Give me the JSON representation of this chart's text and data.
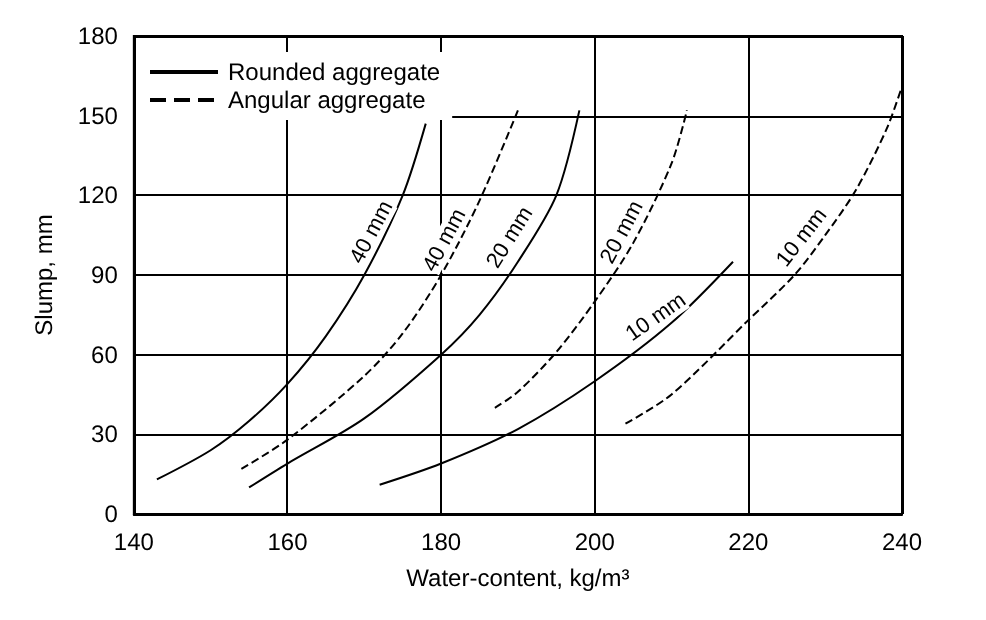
{
  "chart_data": {
    "type": "line",
    "xlabel": "Water-content, kg/m³",
    "ylabel": "Slump, mm",
    "xlim": [
      140,
      240
    ],
    "xticks": [
      140,
      160,
      180,
      200,
      220,
      240
    ],
    "ylim": [
      0,
      180
    ],
    "yticks": [
      0,
      30,
      60,
      90,
      120,
      150,
      180
    ],
    "grid": true,
    "legend": "top left",
    "marker": "none",
    "series": [
      {
        "name": "Rounded aggregate",
        "color": "#000000",
        "line_style": "solid",
        "x": [
          143,
          150,
          155,
          160,
          165,
          170,
          175,
          178
        ],
        "values": [
          13,
          24,
          35,
          49,
          67,
          90,
          120,
          147
        ]
      },
      {
        "name": "Angular aggregate",
        "color": "#000000",
        "line_style": "dashed",
        "x": [
          154,
          160,
          170,
          175,
          180,
          185,
          190
        ],
        "values": [
          17,
          28,
          52,
          68,
          90,
          118,
          152
        ]
      },
      {
        "color": "#000000",
        "line_style": "solid",
        "x": [
          155,
          160,
          170,
          180,
          185,
          190,
          195,
          198
        ],
        "values": [
          10,
          19,
          36,
          60,
          75,
          95,
          120,
          152
        ]
      },
      {
        "color": "#000000",
        "line_style": "dashed",
        "x": [
          187,
          190,
          195,
          200,
          205,
          210,
          212
        ],
        "values": [
          40,
          46,
          61,
          80,
          102,
          132,
          152
        ]
      },
      {
        "color": "#000000",
        "line_style": "solid",
        "x": [
          172,
          180,
          190,
          200,
          210,
          218
        ],
        "values": [
          11,
          19,
          32,
          50,
          72,
          95
        ]
      },
      {
        "color": "#000000",
        "line_style": "dashed",
        "x": [
          204,
          210,
          220,
          226,
          230,
          234,
          238,
          240
        ],
        "values": [
          34,
          45,
          73,
          90,
          105,
          122,
          145,
          161
        ]
      }
    ],
    "annotations": [
      {
        "text": "40 mm",
        "x": 171,
        "y": 106
      },
      {
        "text": "40 mm",
        "x": 180.5,
        "y": 103
      },
      {
        "text": "20 mm",
        "x": 189,
        "y": 104
      },
      {
        "text": "20 mm",
        "x": 203.6,
        "y": 106
      },
      {
        "text": "10 mm",
        "x": 208,
        "y": 74
      },
      {
        "text": "10 mm",
        "x": 227,
        "y": 104
      }
    ]
  }
}
